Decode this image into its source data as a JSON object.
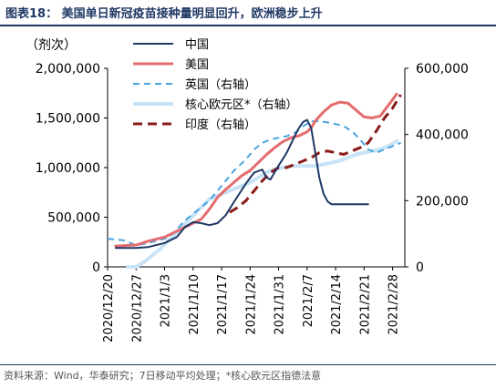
{
  "title": "图表18： 美国单日新冠疫苗接种量明显回升，欧洲稳步上升",
  "source": "资料来源：Wind，华泰研究；7日移动平均处理；*核心欧元区指德法意",
  "chart_data": {
    "type": "line",
    "ylabel_left": "（剂次）",
    "left_ticks": [
      "0",
      "500,000",
      "1,000,000",
      "1,500,000",
      "2,000,000"
    ],
    "right_ticks": [
      "0",
      "200,000",
      "400,000",
      "600,000"
    ],
    "ylim_left": [
      0,
      2000000
    ],
    "ylim_right": [
      0,
      600000
    ],
    "x_ticks": [
      "2020/12/20",
      "2020/12/27",
      "2021/1/3",
      "2021/1/10",
      "2021/1/17",
      "2021/1/24",
      "2021/1/31",
      "2021/2/7",
      "2021/2/14",
      "2021/2/21",
      "2021/2/28"
    ],
    "x_tick_days": [
      0,
      7,
      14,
      21,
      28,
      35,
      42,
      49,
      56,
      63,
      70
    ],
    "legend_position": "top-center",
    "series": [
      {
        "name": "中国",
        "axis": "left",
        "color": "#1f3864",
        "dash": "solid",
        "width": 2,
        "points": [
          [
            2,
            190000
          ],
          [
            7,
            190000
          ],
          [
            10,
            200000
          ],
          [
            14,
            240000
          ],
          [
            17,
            300000
          ],
          [
            19,
            400000
          ],
          [
            21,
            450000
          ],
          [
            23,
            440000
          ],
          [
            25,
            420000
          ],
          [
            27,
            440000
          ],
          [
            29,
            520000
          ],
          [
            31,
            650000
          ],
          [
            34,
            840000
          ],
          [
            36,
            950000
          ],
          [
            38,
            980000
          ],
          [
            39,
            900000
          ],
          [
            40,
            880000
          ],
          [
            42,
            1020000
          ],
          [
            44,
            1150000
          ],
          [
            46,
            1320000
          ],
          [
            47,
            1400000
          ],
          [
            48,
            1460000
          ],
          [
            49,
            1480000
          ],
          [
            50,
            1400000
          ],
          [
            51,
            1150000
          ],
          [
            52,
            900000
          ],
          [
            53,
            740000
          ],
          [
            54,
            660000
          ],
          [
            55,
            630000
          ],
          [
            56,
            630000
          ],
          [
            60,
            630000
          ],
          [
            64,
            630000
          ]
        ]
      },
      {
        "name": "美国",
        "axis": "left",
        "color": "#e46c6e",
        "dash": "solid",
        "width": 3,
        "points": [
          [
            2,
            210000
          ],
          [
            7,
            220000
          ],
          [
            10,
            260000
          ],
          [
            14,
            300000
          ],
          [
            17,
            360000
          ],
          [
            19,
            400000
          ],
          [
            21,
            440000
          ],
          [
            23,
            480000
          ],
          [
            25,
            580000
          ],
          [
            27,
            700000
          ],
          [
            29,
            780000
          ],
          [
            31,
            850000
          ],
          [
            33,
            920000
          ],
          [
            35,
            970000
          ],
          [
            37,
            1050000
          ],
          [
            39,
            1130000
          ],
          [
            41,
            1200000
          ],
          [
            43,
            1260000
          ],
          [
            45,
            1300000
          ],
          [
            47,
            1320000
          ],
          [
            48,
            1340000
          ],
          [
            49,
            1360000
          ],
          [
            50,
            1400000
          ],
          [
            51,
            1470000
          ],
          [
            53,
            1560000
          ],
          [
            55,
            1630000
          ],
          [
            57,
            1660000
          ],
          [
            59,
            1650000
          ],
          [
            61,
            1580000
          ],
          [
            63,
            1510000
          ],
          [
            65,
            1500000
          ],
          [
            67,
            1520000
          ],
          [
            69,
            1630000
          ],
          [
            71,
            1740000
          ]
        ]
      },
      {
        "name": "英国（右轴）",
        "axis": "right",
        "color": "#4aa3df",
        "dash": "dash",
        "width": 2,
        "points": [
          [
            0,
            85000
          ],
          [
            4,
            80000
          ],
          [
            7,
            65000
          ],
          [
            10,
            72000
          ],
          [
            14,
            85000
          ],
          [
            16,
            100000
          ],
          [
            19,
            140000
          ],
          [
            22,
            170000
          ],
          [
            25,
            200000
          ],
          [
            28,
            245000
          ],
          [
            31,
            290000
          ],
          [
            34,
            325000
          ],
          [
            36,
            355000
          ],
          [
            38,
            375000
          ],
          [
            40,
            385000
          ],
          [
            42,
            390000
          ],
          [
            44,
            395000
          ],
          [
            46,
            405000
          ],
          [
            48,
            425000
          ],
          [
            50,
            440000
          ],
          [
            52,
            440000
          ],
          [
            55,
            435000
          ],
          [
            58,
            425000
          ],
          [
            60,
            410000
          ],
          [
            62,
            385000
          ],
          [
            64,
            355000
          ],
          [
            66,
            345000
          ],
          [
            68,
            355000
          ],
          [
            70,
            365000
          ],
          [
            72,
            375000
          ]
        ]
      },
      {
        "name": "核心欧元区*（右轴）",
        "axis": "right",
        "color": "#c7e3f5",
        "dash": "solid",
        "width": 4,
        "points": [
          [
            5,
            0
          ],
          [
            7,
            0
          ],
          [
            9,
            15000
          ],
          [
            11,
            35000
          ],
          [
            13,
            55000
          ],
          [
            15,
            80000
          ],
          [
            17,
            105000
          ],
          [
            19,
            130000
          ],
          [
            21,
            155000
          ],
          [
            23,
            180000
          ],
          [
            25,
            205000
          ],
          [
            27,
            215000
          ],
          [
            29,
            225000
          ],
          [
            31,
            235000
          ],
          [
            33,
            245000
          ],
          [
            35,
            255000
          ],
          [
            37,
            270000
          ],
          [
            39,
            285000
          ],
          [
            41,
            295000
          ],
          [
            43,
            300000
          ],
          [
            45,
            305000
          ],
          [
            47,
            305000
          ],
          [
            49,
            305000
          ],
          [
            51,
            305000
          ],
          [
            53,
            310000
          ],
          [
            55,
            315000
          ],
          [
            57,
            320000
          ],
          [
            59,
            330000
          ],
          [
            61,
            340000
          ],
          [
            63,
            345000
          ],
          [
            65,
            350000
          ],
          [
            67,
            355000
          ],
          [
            69,
            365000
          ],
          [
            71,
            380000
          ]
        ]
      },
      {
        "name": "印度（右轴）",
        "axis": "right",
        "color": "#8b1a1a",
        "dash": "dash",
        "width": 3,
        "points": [
          [
            30,
            165000
          ],
          [
            32,
            180000
          ],
          [
            34,
            200000
          ],
          [
            36,
            230000
          ],
          [
            38,
            260000
          ],
          [
            40,
            285000
          ],
          [
            42,
            300000
          ],
          [
            44,
            300000
          ],
          [
            46,
            310000
          ],
          [
            48,
            320000
          ],
          [
            50,
            330000
          ],
          [
            52,
            345000
          ],
          [
            54,
            350000
          ],
          [
            56,
            345000
          ],
          [
            58,
            340000
          ],
          [
            60,
            350000
          ],
          [
            62,
            360000
          ],
          [
            64,
            375000
          ],
          [
            66,
            410000
          ],
          [
            68,
            450000
          ],
          [
            70,
            480000
          ],
          [
            72,
            520000
          ]
        ]
      }
    ]
  }
}
